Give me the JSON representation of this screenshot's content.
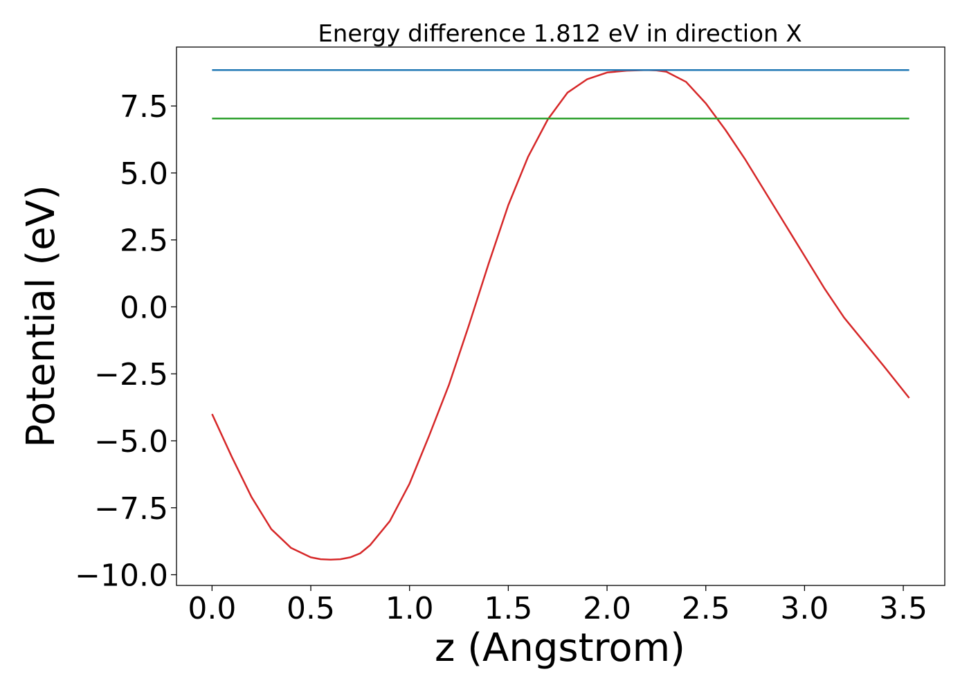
{
  "chart_data": {
    "type": "line",
    "title": "Energy difference 1.812 eV in direction X",
    "xlabel": "z (Angstrom)",
    "ylabel": "Potential (eV)",
    "xlim": [
      -0.18,
      3.71
    ],
    "ylim": [
      -10.4,
      9.7
    ],
    "xticks": [
      0.0,
      0.5,
      1.0,
      1.5,
      2.0,
      2.5,
      3.0,
      3.5
    ],
    "xtick_labels": [
      "0.0",
      "0.5",
      "1.0",
      "1.5",
      "2.0",
      "2.5",
      "3.0",
      "3.5"
    ],
    "yticks": [
      -10.0,
      -7.5,
      -5.0,
      -2.5,
      0.0,
      2.5,
      5.0,
      7.5
    ],
    "ytick_labels": [
      "−10.0",
      "−7.5",
      "−5.0",
      "−2.5",
      "0.0",
      "2.5",
      "5.0",
      "7.5"
    ],
    "grid": false,
    "series": [
      {
        "color": "#d62728",
        "x": [
          0.0,
          0.1,
          0.2,
          0.3,
          0.4,
          0.5,
          0.55,
          0.6,
          0.65,
          0.7,
          0.75,
          0.8,
          0.9,
          1.0,
          1.1,
          1.2,
          1.3,
          1.4,
          1.5,
          1.6,
          1.7,
          1.8,
          1.9,
          2.0,
          2.1,
          2.2,
          2.25,
          2.3,
          2.4,
          2.5,
          2.6,
          2.7,
          2.8,
          2.9,
          3.0,
          3.1,
          3.2,
          3.3,
          3.4,
          3.53
        ],
        "y": [
          -4.0,
          -5.6,
          -7.1,
          -8.3,
          -9.0,
          -9.35,
          -9.42,
          -9.44,
          -9.42,
          -9.35,
          -9.2,
          -8.9,
          -8.0,
          -6.6,
          -4.8,
          -2.9,
          -0.7,
          1.6,
          3.8,
          5.6,
          7.0,
          8.0,
          8.5,
          8.75,
          8.82,
          8.84,
          8.83,
          8.78,
          8.4,
          7.6,
          6.6,
          5.5,
          4.3,
          3.1,
          1.9,
          0.7,
          -0.4,
          -1.3,
          -2.2,
          -3.4
        ]
      },
      {
        "color": "#1f77b4",
        "x": [
          0.0,
          3.53
        ],
        "y": [
          8.84,
          8.84
        ]
      },
      {
        "color": "#2ca02c",
        "x": [
          0.0,
          3.53
        ],
        "y": [
          7.03,
          7.03
        ]
      }
    ]
  }
}
